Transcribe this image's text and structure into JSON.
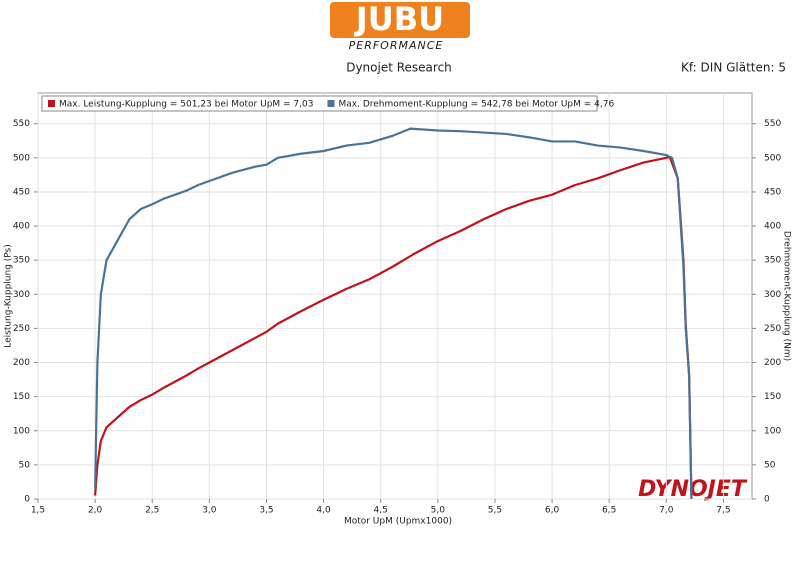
{
  "header": {
    "logo": "JUBU",
    "logo_subtitle": "PERFORMANCE",
    "subtitle": "Dynojet Research",
    "settings": "Kf: DIN Glätten: 5"
  },
  "watermark": "DYNOJET",
  "chart_data": {
    "type": "line",
    "x_label": "Motor UpM (Upmx1000)",
    "y_label": "Leistung-Kupplung (Ps)",
    "y2_label": "Drehmoment-Kupplung (Nm)",
    "xlim": [
      1.5,
      7.75
    ],
    "xticks": [
      {
        "value": 1.5,
        "label": "1,5"
      },
      {
        "value": 2.0,
        "label": "2,0"
      },
      {
        "value": 2.5,
        "label": "2,5"
      },
      {
        "value": 3.0,
        "label": "3,0"
      },
      {
        "value": 3.5,
        "label": "3,5"
      },
      {
        "value": 4.0,
        "label": "4,0"
      },
      {
        "value": 4.5,
        "label": "4,5"
      },
      {
        "value": 5.0,
        "label": "5,0"
      },
      {
        "value": 5.5,
        "label": "5,5"
      },
      {
        "value": 6.0,
        "label": "6,0"
      },
      {
        "value": 6.5,
        "label": "6,5"
      },
      {
        "value": 7.0,
        "label": "7,0"
      },
      {
        "value": 7.5,
        "label": "7,5"
      }
    ],
    "ylim": [
      0,
      595
    ],
    "yticks": [
      0,
      50,
      100,
      150,
      200,
      250,
      300,
      350,
      400,
      450,
      500,
      550
    ],
    "y2lim": [
      0,
      595
    ],
    "y2ticks": [
      0,
      50,
      100,
      150,
      200,
      250,
      300,
      350,
      400,
      450,
      500,
      550
    ],
    "grid": true,
    "legend": "top-left",
    "series": [
      {
        "name": "Max. Leistung-Kupplung = 501,23 bei Motor UpM = 7,03",
        "color": "#c0141c",
        "x": [
          2.0,
          2.02,
          2.05,
          2.1,
          2.2,
          2.3,
          2.4,
          2.5,
          2.6,
          2.7,
          2.8,
          2.9,
          3.0,
          3.2,
          3.4,
          3.5,
          3.6,
          3.8,
          4.0,
          4.2,
          4.4,
          4.6,
          4.8,
          5.0,
          5.2,
          5.4,
          5.6,
          5.8,
          6.0,
          6.2,
          6.4,
          6.6,
          6.8,
          7.0,
          7.03,
          7.1,
          7.15,
          7.17,
          7.2,
          7.22
        ],
        "values": [
          5,
          50,
          85,
          105,
          120,
          135,
          145,
          153,
          163,
          172,
          181,
          191,
          200,
          218,
          236,
          245,
          257,
          275,
          292,
          308,
          322,
          340,
          360,
          378,
          393,
          410,
          425,
          437,
          446,
          460,
          470,
          482,
          493,
          500,
          501.23,
          470,
          350,
          255,
          180,
          0
        ]
      },
      {
        "name": "Max. Drehmoment-Kupplung = 542,78 bei Motor UpM = 4,76",
        "color": "#4a7396",
        "axis": "y2",
        "x": [
          2.0,
          2.02,
          2.05,
          2.1,
          2.2,
          2.3,
          2.4,
          2.5,
          2.6,
          2.7,
          2.8,
          2.9,
          3.0,
          3.2,
          3.4,
          3.5,
          3.6,
          3.8,
          4.0,
          4.2,
          4.4,
          4.6,
          4.76,
          5.0,
          5.2,
          5.4,
          5.6,
          5.8,
          6.0,
          6.2,
          6.4,
          6.6,
          6.8,
          7.0,
          7.05,
          7.1,
          7.15,
          7.17,
          7.2,
          7.22
        ],
        "values": [
          15,
          200,
          300,
          350,
          380,
          410,
          425,
          432,
          440,
          446,
          452,
          460,
          466,
          478,
          487,
          490,
          500,
          506,
          510,
          518,
          522,
          532,
          542.78,
          540,
          539,
          537,
          535,
          530,
          524,
          524,
          518,
          515,
          510,
          504,
          500,
          470,
          340,
          250,
          180,
          0
        ]
      }
    ]
  }
}
